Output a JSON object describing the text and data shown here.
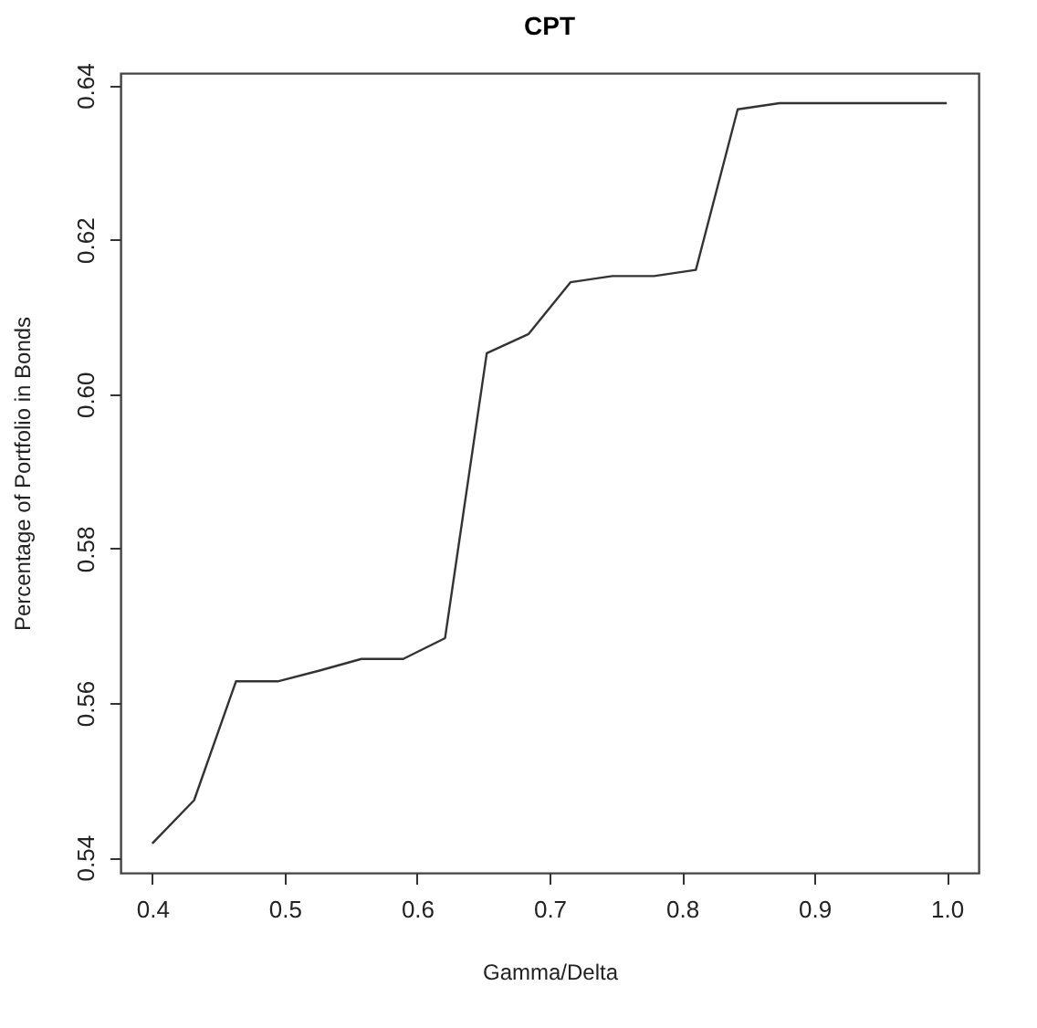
{
  "chart_data": {
    "type": "line",
    "title": "CPT",
    "xlabel": "Gamma/Delta",
    "ylabel": "Percentage of Portfolio in Bonds",
    "x": [
      0.4,
      0.4316,
      0.4632,
      0.4947,
      0.5263,
      0.5579,
      0.5895,
      0.6211,
      0.6526,
      0.6842,
      0.7158,
      0.7474,
      0.7789,
      0.8105,
      0.8421,
      0.8737,
      0.9053,
      0.9368,
      0.9684,
      1.0
    ],
    "values": [
      0.5418,
      0.5474,
      0.5628,
      0.5628,
      0.5642,
      0.5657,
      0.5657,
      0.5684,
      0.6053,
      0.6078,
      0.6145,
      0.6153,
      0.6153,
      0.6161,
      0.6369,
      0.6377,
      0.6377,
      0.6377,
      0.6377,
      0.6377
    ],
    "color": "#333333",
    "xlim": [
      0.376,
      1.024
    ],
    "ylim": [
      0.538,
      0.6416
    ],
    "xticks": [
      0.4,
      0.5,
      0.6,
      0.7,
      0.8,
      0.9,
      {
        "value": 1.0,
        "label": "1.0"
      }
    ],
    "yticks": [
      {
        "value": 0.54,
        "label": "0.54"
      },
      {
        "value": 0.56,
        "label": "0.56"
      },
      {
        "value": 0.58,
        "label": "0.58"
      },
      {
        "value": 0.6,
        "label": "0.60"
      },
      {
        "value": 0.62,
        "label": "0.62"
      },
      {
        "value": 0.64,
        "label": "0.64"
      }
    ]
  }
}
